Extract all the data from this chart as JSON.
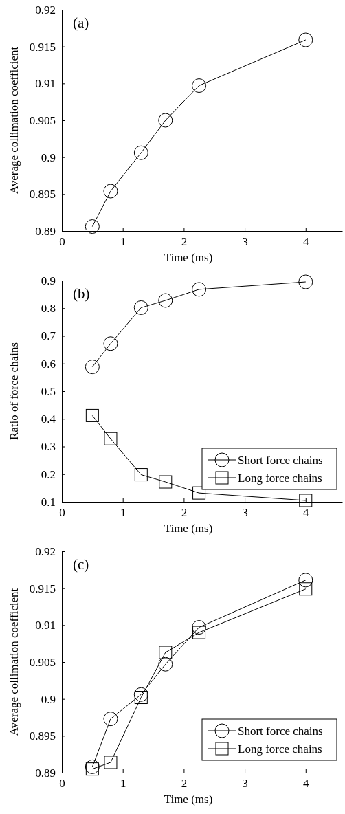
{
  "chart_data": [
    {
      "type": "line",
      "annotations": [
        "(a)"
      ],
      "xlabel": "Time (ms)",
      "ylabel": "Average collimation coefficient",
      "x": [
        0.5,
        0.8,
        1.3,
        1.7,
        2.25,
        4
      ],
      "series": [
        {
          "color": "#000000",
          "marker": "circle",
          "values": [
            0.8906,
            0.8954,
            0.9006,
            0.905,
            0.9097,
            0.9159
          ]
        }
      ],
      "xlim": [
        0,
        4.6
      ],
      "xticks": [
        0,
        1,
        2,
        3,
        4
      ],
      "ylim": [
        0.89,
        0.92
      ],
      "yticks": [
        0.89,
        0.895,
        0.9,
        0.905,
        0.91,
        0.915,
        0.92
      ],
      "grid": false,
      "legend": false,
      "line_style": "solid"
    },
    {
      "type": "line",
      "annotations": [
        "(b)"
      ],
      "xlabel": "Time (ms)",
      "ylabel": "Ratio of force chains",
      "x": [
        0.5,
        0.8,
        1.3,
        1.7,
        2.25,
        4
      ],
      "series": [
        {
          "name": "Short force chains",
          "color": "#000000",
          "marker": "circle",
          "values": [
            0.588,
            0.672,
            0.802,
            0.828,
            0.868,
            0.895
          ]
        },
        {
          "name": "Long force chains",
          "color": "#000000",
          "marker": "square",
          "values": [
            0.412,
            0.328,
            0.198,
            0.172,
            0.132,
            0.105
          ]
        }
      ],
      "xlim": [
        0,
        4.6
      ],
      "xticks": [
        0,
        1,
        2,
        3,
        4
      ],
      "ylim": [
        0.1,
        0.9
      ],
      "yticks": [
        0.1,
        0.2,
        0.3,
        0.4,
        0.5,
        0.6,
        0.7,
        0.8,
        0.9
      ],
      "grid": false,
      "legend": "bottom right",
      "line_style": "solid"
    },
    {
      "type": "line",
      "annotations": [
        "(c)"
      ],
      "xlabel": "Time (ms)",
      "ylabel": "Average collimation coefficient",
      "x": [
        0.5,
        0.8,
        1.3,
        1.7,
        2.25,
        4
      ],
      "series": [
        {
          "name": "Short force chains",
          "color": "#000000",
          "marker": "circle",
          "values": [
            0.8908,
            0.8973,
            0.9006,
            0.9047,
            0.9097,
            0.9161
          ]
        },
        {
          "name": "Long force chains",
          "color": "#000000",
          "marker": "square",
          "values": [
            0.8905,
            0.8914,
            0.9002,
            0.9063,
            0.909,
            0.9149
          ]
        }
      ],
      "xlim": [
        0,
        4.6
      ],
      "xticks": [
        0,
        1,
        2,
        3,
        4
      ],
      "ylim": [
        0.89,
        0.92
      ],
      "yticks": [
        0.89,
        0.895,
        0.9,
        0.905,
        0.91,
        0.915,
        0.92
      ],
      "grid": false,
      "legend": "bottom right",
      "line_style": "solid"
    }
  ]
}
